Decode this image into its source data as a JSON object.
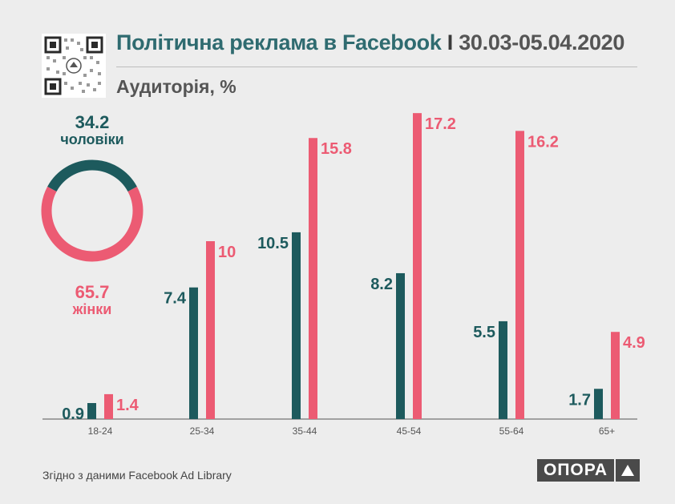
{
  "header": {
    "title_main": "Політична реклама в Facebook",
    "title_sep": "I",
    "title_dates": "30.03-05.04.2020",
    "subtitle": "Аудиторія, %"
  },
  "footer": {
    "source": "Згідно з даними  Facebook Ad Library",
    "logo_text": "ОПОРА"
  },
  "colors": {
    "men": "#1d5a5d",
    "women": "#ec5b73",
    "axis": "#555555"
  },
  "icons": {
    "qr": "qr-code-icon",
    "logo_mark": "triangle-up-icon"
  },
  "chart_data": [
    {
      "type": "pie",
      "style": "donut",
      "slices": [
        {
          "label": "чоловіки",
          "value": 34.2
        },
        {
          "label": "жінки",
          "value": 65.7
        }
      ]
    },
    {
      "type": "bar",
      "categories": [
        "18-24",
        "25-34",
        "35-44",
        "45-54",
        "55-64",
        "65+"
      ],
      "series": [
        {
          "name": "чоловіки",
          "values": [
            0.9,
            7.4,
            10.5,
            8.2,
            5.5,
            1.7
          ]
        },
        {
          "name": "жінки",
          "values": [
            1.4,
            10,
            15.8,
            17.2,
            16.2,
            4.9
          ]
        }
      ],
      "grid": false,
      "legend": "none"
    }
  ]
}
